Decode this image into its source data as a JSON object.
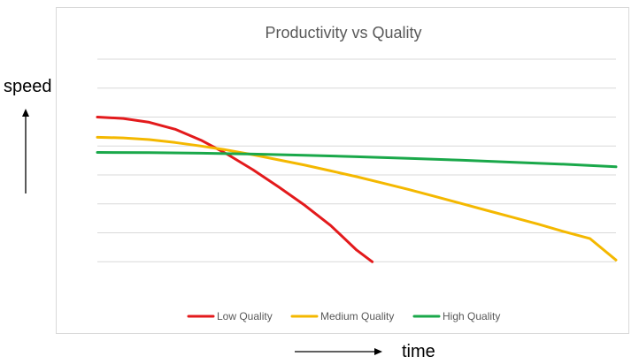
{
  "outside_labels": {
    "speed": "speed",
    "time": "time"
  },
  "chart_data": {
    "type": "line",
    "title": "Productivity vs Quality",
    "xlabel": "",
    "ylabel": "",
    "grid": true,
    "legend_position": "bottom",
    "ylim": [
      0,
      8
    ],
    "gridline_values": [
      1,
      2,
      3,
      4,
      5,
      6,
      7,
      8
    ],
    "series": [
      {
        "name": "Low Quality",
        "color": "#e31a1c",
        "x": [
          0.0,
          0.05,
          0.1,
          0.15,
          0.2,
          0.25,
          0.3,
          0.35,
          0.4,
          0.45,
          0.5,
          0.53
        ],
        "values": [
          6.0,
          5.95,
          5.82,
          5.58,
          5.2,
          4.72,
          4.18,
          3.58,
          2.95,
          2.25,
          1.4,
          1.0
        ]
      },
      {
        "name": "Medium Quality",
        "color": "#f4b800",
        "x": [
          0.0,
          0.05,
          0.1,
          0.15,
          0.2,
          0.25,
          0.3,
          0.35,
          0.4,
          0.45,
          0.5,
          0.55,
          0.6,
          0.65,
          0.7,
          0.75,
          0.8,
          0.85,
          0.9,
          0.95,
          1.0
        ],
        "values": [
          5.3,
          5.28,
          5.22,
          5.12,
          5.0,
          4.86,
          4.7,
          4.52,
          4.34,
          4.14,
          3.94,
          3.72,
          3.5,
          3.26,
          3.02,
          2.78,
          2.54,
          2.3,
          2.04,
          1.8,
          1.06
        ]
      },
      {
        "name": "High Quality",
        "color": "#1aa84a",
        "x": [
          0.0,
          0.1,
          0.2,
          0.3,
          0.4,
          0.5,
          0.6,
          0.7,
          0.8,
          0.9,
          1.0
        ],
        "values": [
          4.78,
          4.77,
          4.75,
          4.72,
          4.68,
          4.63,
          4.57,
          4.51,
          4.44,
          4.37,
          4.28
        ]
      }
    ]
  }
}
